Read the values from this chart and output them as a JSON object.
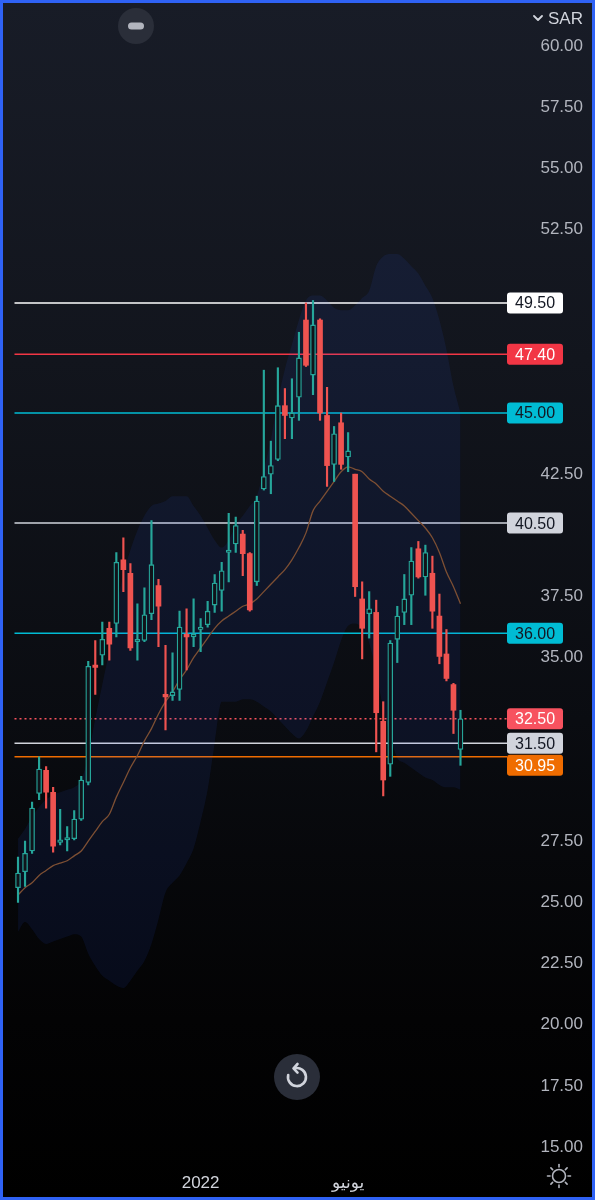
{
  "chart_data": {
    "type": "candlestick",
    "categories": [
      null,
      null,
      null,
      null,
      null,
      null,
      null,
      null,
      null,
      null,
      null,
      null,
      null,
      null,
      null,
      null,
      null,
      null,
      null,
      null,
      null,
      null,
      null,
      null,
      null,
      null,
      "2022",
      null,
      null,
      null,
      null,
      null,
      null,
      null,
      null,
      null,
      null,
      null,
      null,
      null,
      null,
      null,
      null,
      null,
      null,
      null,
      null,
      "يونيو",
      null,
      null,
      null,
      null,
      null,
      null,
      null,
      null,
      null,
      null,
      null,
      null,
      null,
      null,
      null,
      null
    ],
    "ohlc": [
      [
        25.6,
        26.85,
        25.0,
        26.2
      ],
      [
        26.25,
        27.5,
        25.65,
        27.0
      ],
      [
        27.1,
        29.1,
        27.0,
        28.85
      ],
      [
        29.45,
        30.95,
        29.2,
        30.45
      ],
      [
        30.4,
        30.55,
        28.85,
        29.5
      ],
      [
        29.5,
        29.7,
        27.05,
        27.3
      ],
      [
        27.45,
        28.8,
        27.35,
        27.55
      ],
      [
        27.55,
        28.1,
        27.1,
        27.65
      ],
      [
        27.6,
        28.75,
        27.55,
        28.4
      ],
      [
        28.4,
        30.15,
        28.35,
        30.0
      ],
      [
        29.9,
        34.85,
        29.8,
        34.65
      ],
      [
        34.7,
        35.7,
        33.5,
        34.6
      ],
      [
        35.1,
        36.45,
        34.7,
        35.75
      ],
      [
        36.2,
        36.45,
        34.9,
        35.55
      ],
      [
        36.4,
        39.3,
        35.85,
        38.9
      ],
      [
        39.0,
        39.9,
        37.7,
        38.6
      ],
      [
        38.45,
        38.85,
        35.3,
        35.4
      ],
      [
        35.65,
        37.2,
        34.9,
        35.75
      ],
      [
        35.7,
        37.85,
        35.65,
        36.75
      ],
      [
        36.8,
        40.6,
        36.55,
        38.8
      ],
      [
        37.95,
        38.2,
        35.45,
        37.1
      ],
      [
        33.5,
        35.5,
        32.05,
        33.4
      ],
      [
        33.45,
        35.2,
        33.25,
        33.6
      ],
      [
        33.7,
        36.9,
        33.25,
        36.25
      ],
      [
        35.95,
        37.0,
        34.5,
        35.85
      ],
      [
        35.85,
        37.4,
        35.45,
        35.95
      ],
      [
        36.15,
        36.6,
        35.25,
        36.25
      ],
      [
        36.35,
        37.3,
        36.25,
        36.9
      ],
      [
        37.15,
        38.4,
        36.85,
        38.05
      ],
      [
        37.75,
        38.9,
        36.9,
        38.55
      ],
      [
        39.3,
        40.9,
        38.1,
        39.4
      ],
      [
        39.65,
        40.75,
        39.3,
        40.4
      ],
      [
        40.05,
        40.2,
        38.35,
        39.25
      ],
      [
        39.25,
        39.3,
        36.9,
        36.95
      ],
      [
        38.1,
        41.6,
        37.95,
        41.4
      ],
      [
        41.9,
        46.75,
        41.85,
        42.4
      ],
      [
        42.5,
        43.85,
        41.7,
        42.85
      ],
      [
        43.1,
        46.85,
        43.05,
        45.3
      ],
      [
        45.3,
        46.0,
        43.95,
        44.9
      ],
      [
        44.8,
        46.4,
        43.95,
        45.0
      ],
      [
        45.65,
        48.3,
        44.7,
        47.25
      ],
      [
        48.8,
        49.5,
        46.9,
        46.95
      ],
      [
        46.55,
        49.6,
        45.75,
        48.6
      ],
      [
        48.8,
        48.85,
        44.7,
        45.0
      ],
      [
        44.9,
        46.05,
        42.0,
        42.85
      ],
      [
        42.9,
        44.45,
        42.2,
        44.15
      ],
      [
        44.6,
        45.0,
        42.7,
        42.9
      ],
      [
        43.2,
        44.2,
        42.6,
        43.45
      ],
      [
        42.5,
        42.5,
        37.5,
        37.9
      ],
      [
        37.4,
        38.1,
        34.95,
        36.2
      ],
      [
        36.8,
        37.7,
        35.8,
        37.0
      ],
      [
        36.85,
        37.35,
        31.15,
        32.75
      ],
      [
        32.4,
        33.2,
        29.35,
        30.0
      ],
      [
        30.65,
        35.7,
        30.15,
        35.6
      ],
      [
        35.75,
        37.1,
        34.8,
        36.7
      ],
      [
        36.85,
        38.4,
        36.35,
        37.4
      ],
      [
        37.55,
        39.5,
        36.35,
        38.95
      ],
      [
        39.45,
        39.75,
        38.25,
        38.3
      ],
      [
        38.3,
        39.6,
        37.55,
        39.3
      ],
      [
        38.45,
        39.15,
        36.2,
        36.9
      ],
      [
        36.7,
        37.6,
        34.75,
        35.05
      ],
      [
        35.15,
        36.15,
        34.05,
        34.15
      ],
      [
        33.9,
        33.95,
        31.9,
        32.85
      ],
      [
        31.25,
        32.85,
        30.6,
        32.5
      ]
    ],
    "colors": [
      "#26a69a",
      "#26a69a",
      "#26a69a",
      "#26a69a",
      "#ef5350",
      "#ef5350",
      "#26a69a",
      "#26a69a",
      "#26a69a",
      "#26a69a",
      "#26a69a",
      "#ef5350",
      "#26a69a",
      "#ef5350",
      "#26a69a",
      "#ef5350",
      "#ef5350",
      "#26a69a",
      "#26a69a",
      "#26a69a",
      "#ef5350",
      "#ef5350",
      "#26a69a",
      "#26a69a",
      "#ef5350",
      "#26a69a",
      "#26a69a",
      "#26a69a",
      "#26a69a",
      "#26a69a",
      "#26a69a",
      "#26a69a",
      "#ef5350",
      "#ef5350",
      "#26a69a",
      "#26a69a",
      "#26a69a",
      "#26a69a",
      "#ef5350",
      "#26a69a",
      "#26a69a",
      "#ef5350",
      "#26a69a",
      "#ef5350",
      "#ef5350",
      "#26a69a",
      "#ef5350",
      "#26a69a",
      "#ef5350",
      "#ef5350",
      "#26a69a",
      "#ef5350",
      "#ef5350",
      "#26a69a",
      "#26a69a",
      "#26a69a",
      "#26a69a",
      "#ef5350",
      "#26a69a",
      "#ef5350",
      "#ef5350",
      "#ef5350",
      "#ef5350",
      "#26a69a"
    ],
    "series": [
      {
        "type": "line",
        "color": "#7d4f33",
        "values": [
          25.3,
          25.6,
          25.8,
          26.1,
          26.3,
          26.5,
          26.6,
          26.7,
          26.9,
          27.1,
          27.5,
          27.9,
          28.3,
          28.6,
          29.3,
          29.9,
          30.5,
          31.0,
          31.6,
          32.1,
          32.7,
          33.2,
          33.6,
          34.1,
          34.5,
          35.0,
          35.4,
          35.8,
          36.2,
          36.5,
          36.7,
          36.9,
          37.1,
          37.2,
          37.4,
          37.7,
          38.0,
          38.3,
          38.6,
          39.0,
          39.5,
          40.1,
          41.0,
          41.4,
          41.8,
          42.2,
          42.6,
          42.8,
          42.7,
          42.6,
          42.3,
          42.1,
          41.8,
          41.6,
          41.4,
          41.2,
          40.9,
          40.6,
          40.3,
          39.9,
          39.3,
          38.5,
          37.9,
          37.2
        ],
        "upper": [
          27.6,
          28.0,
          28.5,
          28.9,
          29.2,
          29.4,
          29.5,
          29.6,
          29.7,
          30.0,
          31.0,
          32.5,
          33.9,
          35.3,
          37.0,
          38.4,
          39.4,
          40.2,
          40.8,
          41.2,
          41.3,
          41.4,
          41.6,
          41.6,
          41.6,
          41.2,
          40.8,
          40.3,
          39.8,
          39.5,
          39.8,
          40.4,
          40.8,
          41.2,
          41.6,
          42.7,
          43.9,
          45.5,
          46.8,
          47.8,
          48.8,
          49.6,
          49.8,
          49.8,
          49.6,
          49.3,
          49.2,
          49.2,
          49.4,
          49.7,
          50.0,
          51.0,
          51.4,
          51.5,
          51.5,
          51.3,
          51.0,
          50.7,
          50.2,
          49.7,
          48.8,
          47.6,
          46.1,
          45.0
        ],
        "lower": [
          23.8,
          24.2,
          23.9,
          23.5,
          23.3,
          23.4,
          23.5,
          23.6,
          23.7,
          23.6,
          22.9,
          22.4,
          22.0,
          21.8,
          21.6,
          21.5,
          21.8,
          22.2,
          22.6,
          23.3,
          24.3,
          25.4,
          25.8,
          26.1,
          26.6,
          27.2,
          28.3,
          29.6,
          31.5,
          33.2,
          33.2,
          33.2,
          33.3,
          33.3,
          33.2,
          33.0,
          32.8,
          32.5,
          32.2,
          31.9,
          31.7,
          32.0,
          32.6,
          33.2,
          34.0,
          34.8,
          35.7,
          36.3,
          36.4,
          36.2,
          35.6,
          34.4,
          32.9,
          31.8,
          30.9,
          30.7,
          30.5,
          30.3,
          30.1,
          30.0,
          29.8,
          29.7,
          29.7,
          29.6
        ]
      }
    ],
    "ylabel": "SAR",
    "ylim": [
      15,
      60
    ],
    "yticks": [
      {
        "value": 15,
        "label": "15.00"
      },
      {
        "value": 17.5,
        "label": "17.50"
      },
      {
        "value": 20,
        "label": "20.00"
      },
      {
        "value": 22.5,
        "label": "22.50"
      },
      {
        "value": 25,
        "label": "25.00"
      },
      {
        "value": 27.5,
        "label": "27.50"
      },
      {
        "value": 35,
        "label": "35.00"
      },
      {
        "value": 37.5,
        "label": "37.50"
      },
      {
        "value": 42.5,
        "label": "42.50"
      },
      {
        "value": 52.5,
        "label": "52.50"
      },
      {
        "value": 55,
        "label": "55.00"
      },
      {
        "value": 57.5,
        "label": "57.50"
      },
      {
        "value": 60,
        "label": "60.00"
      }
    ],
    "ref_lines": [
      {
        "axis": "y",
        "value": 49.5,
        "label": "49.50",
        "color": "#ffffff"
      },
      {
        "axis": "y",
        "value": 47.4,
        "label": "47.40",
        "color": "#f23645"
      },
      {
        "axis": "y",
        "value": 45,
        "label": "45.00",
        "color": "#00bcd4"
      },
      {
        "axis": "y",
        "value": 40.5,
        "label": "40.50",
        "color": "#d1d4dc"
      },
      {
        "axis": "y",
        "value": 36,
        "label": "36.00",
        "color": "#00bcd4"
      },
      {
        "axis": "y",
        "value": 32.5,
        "label": "32.50",
        "color": "#f7525f",
        "line_style": "dotted"
      },
      {
        "axis": "y",
        "value": 31.5,
        "label": "31.50",
        "color": "#d1d4dc"
      },
      {
        "axis": "y",
        "value": 30.95,
        "label": "30.95",
        "color": "#ef6c00"
      }
    ]
  }
}
